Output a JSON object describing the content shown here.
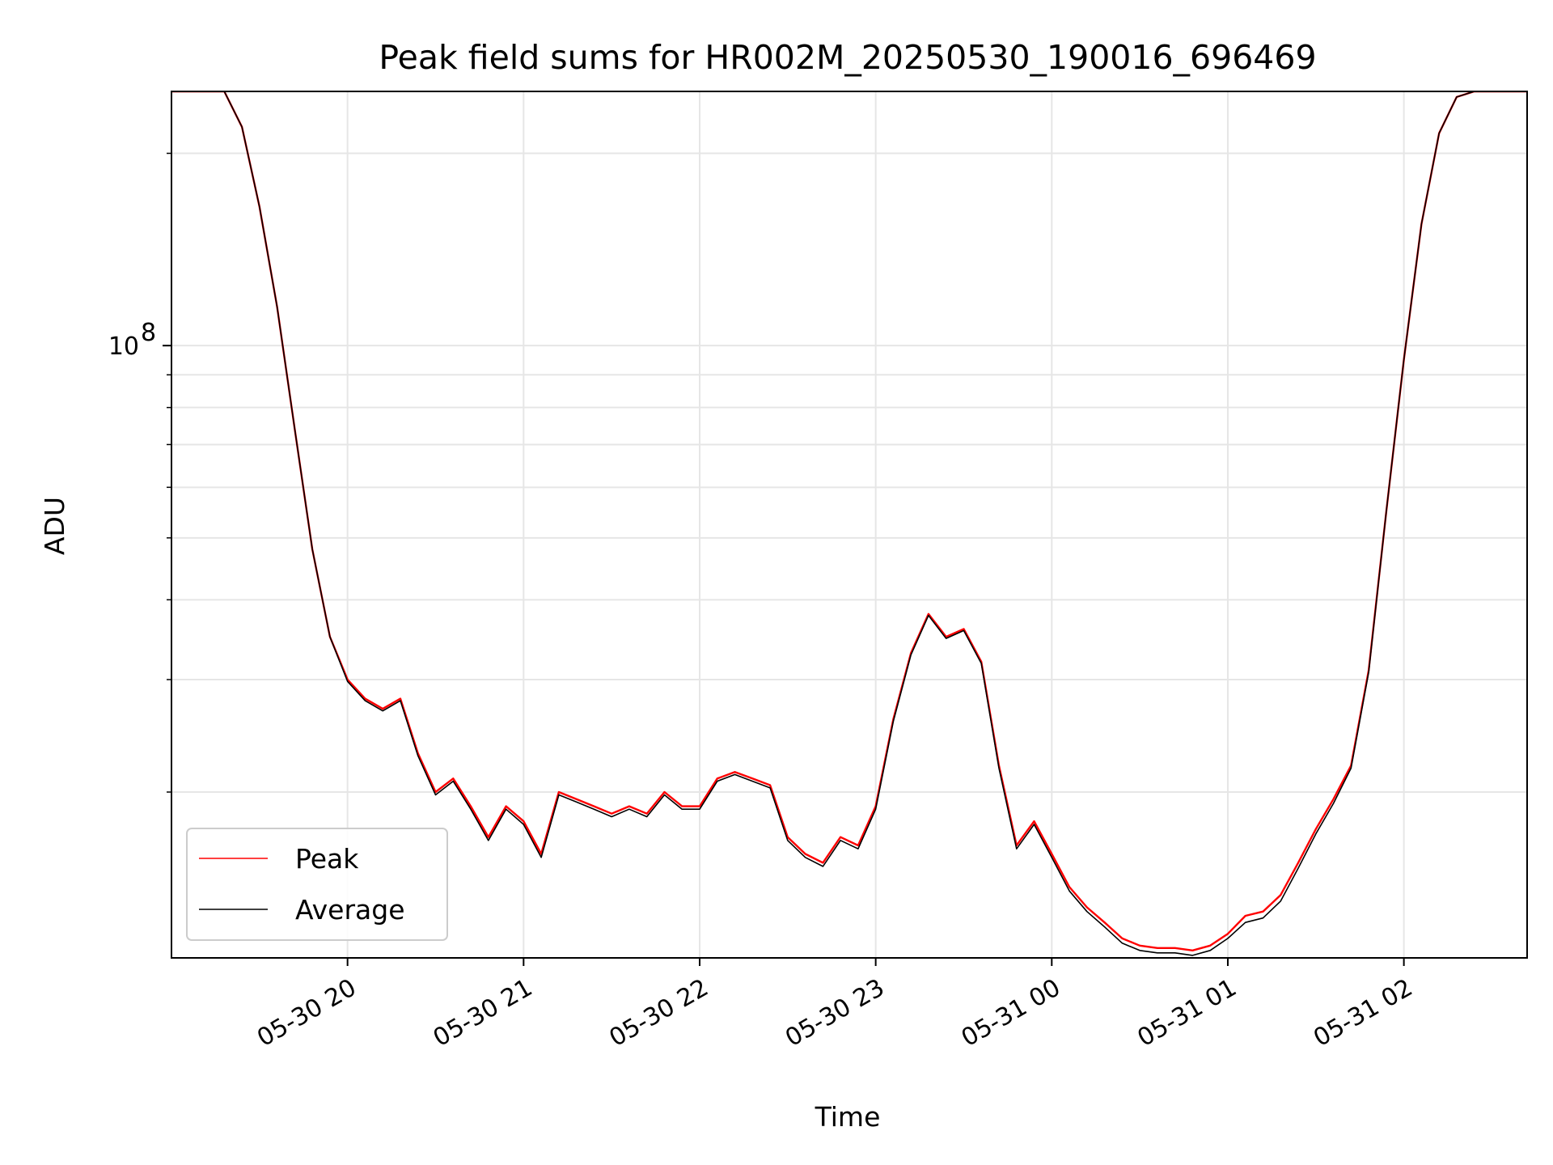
{
  "chart_data": {
    "type": "line",
    "title": "Peak field sums for HR002M_20250530_190016_696469",
    "xlabel": "Time",
    "ylabel": "ADU",
    "yscale": "log",
    "ylim": [
      11000000,
      250000000
    ],
    "xlim": [
      "2025-05-30 19:00",
      "2025-05-31 02:42"
    ],
    "grid": true,
    "legend_position": "lower-left",
    "x_ticks": [
      {
        "value": "2025-05-30 20:00",
        "label": "05-30 20"
      },
      {
        "value": "2025-05-30 21:00",
        "label": "05-30 21"
      },
      {
        "value": "2025-05-30 22:00",
        "label": "05-30 22"
      },
      {
        "value": "2025-05-30 23:00",
        "label": "05-30 23"
      },
      {
        "value": "2025-05-31 00:00",
        "label": "05-31 00"
      },
      {
        "value": "2025-05-31 01:00",
        "label": "05-31 01"
      },
      {
        "value": "2025-05-31 02:00",
        "label": "05-31 02"
      }
    ],
    "y_major_ticks": [
      {
        "value": 100000000,
        "mantissa": "10",
        "exponent": "8"
      }
    ],
    "y_minor_ticks": [
      20000000,
      30000000,
      40000000,
      50000000,
      60000000,
      70000000,
      80000000,
      90000000,
      200000000
    ],
    "x": [
      "2025-05-30 19:00",
      "2025-05-30 19:06",
      "2025-05-30 19:12",
      "2025-05-30 19:18",
      "2025-05-30 19:24",
      "2025-05-30 19:30",
      "2025-05-30 19:36",
      "2025-05-30 19:42",
      "2025-05-30 19:48",
      "2025-05-30 19:54",
      "2025-05-30 20:00",
      "2025-05-30 20:06",
      "2025-05-30 20:12",
      "2025-05-30 20:18",
      "2025-05-30 20:24",
      "2025-05-30 20:30",
      "2025-05-30 20:36",
      "2025-05-30 20:42",
      "2025-05-30 20:48",
      "2025-05-30 20:54",
      "2025-05-30 21:00",
      "2025-05-30 21:06",
      "2025-05-30 21:12",
      "2025-05-30 21:18",
      "2025-05-30 21:24",
      "2025-05-30 21:30",
      "2025-05-30 21:36",
      "2025-05-30 21:42",
      "2025-05-30 21:48",
      "2025-05-30 21:54",
      "2025-05-30 22:00",
      "2025-05-30 22:06",
      "2025-05-30 22:12",
      "2025-05-30 22:18",
      "2025-05-30 22:24",
      "2025-05-30 22:30",
      "2025-05-30 22:36",
      "2025-05-30 22:42",
      "2025-05-30 22:48",
      "2025-05-30 22:54",
      "2025-05-30 23:00",
      "2025-05-30 23:06",
      "2025-05-30 23:12",
      "2025-05-30 23:18",
      "2025-05-30 23:24",
      "2025-05-30 23:30",
      "2025-05-30 23:36",
      "2025-05-30 23:42",
      "2025-05-30 23:48",
      "2025-05-30 23:54",
      "2025-05-31 00:00",
      "2025-05-31 00:06",
      "2025-05-31 00:12",
      "2025-05-31 00:18",
      "2025-05-31 00:24",
      "2025-05-31 00:30",
      "2025-05-31 00:36",
      "2025-05-31 00:42",
      "2025-05-31 00:48",
      "2025-05-31 00:54",
      "2025-05-31 01:00",
      "2025-05-31 01:06",
      "2025-05-31 01:12",
      "2025-05-31 01:18",
      "2025-05-31 01:24",
      "2025-05-31 01:30",
      "2025-05-31 01:36",
      "2025-05-31 01:42",
      "2025-05-31 01:48",
      "2025-05-31 01:54",
      "2025-05-31 02:00",
      "2025-05-31 02:06",
      "2025-05-31 02:12",
      "2025-05-31 02:18",
      "2025-05-31 02:24",
      "2025-05-31 02:30",
      "2025-05-31 02:36",
      "2025-05-31 02:42"
    ],
    "series": [
      {
        "name": "Peak",
        "color": "#ff0000",
        "values": [
          250000000,
          250000000,
          250000000,
          250000000,
          220000000,
          165000000,
          115000000,
          74000000,
          48000000,
          35000000,
          30000000,
          28000000,
          27000000,
          28000000,
          23000000,
          20000000,
          21000000,
          19000000,
          17000000,
          19000000,
          18000000,
          16000000,
          20000000,
          19500000,
          19000000,
          18500000,
          19000000,
          18500000,
          20000000,
          19000000,
          19000000,
          21000000,
          21500000,
          21000000,
          20500000,
          17000000,
          16000000,
          15500000,
          17000000,
          16500000,
          19000000,
          26000000,
          33000000,
          38000000,
          35000000,
          36000000,
          32000000,
          22000000,
          16500000,
          18000000,
          16000000,
          14200000,
          13200000,
          12500000,
          11800000,
          11500000,
          11400000,
          11400000,
          11300000,
          11500000,
          12000000,
          12800000,
          13000000,
          13800000,
          15500000,
          17500000,
          19500000,
          22000000,
          31000000,
          55000000,
          95000000,
          155000000,
          215000000,
          245000000,
          250000000,
          250000000,
          250000000,
          250000000
        ]
      },
      {
        "name": "Average",
        "color": "#000000",
        "values": [
          250000000,
          250000000,
          250000000,
          250000000,
          220000000,
          165000000,
          115000000,
          74000000,
          48000000,
          35000000,
          29800000,
          27800000,
          26800000,
          27800000,
          22800000,
          19800000,
          20800000,
          18800000,
          16800000,
          18800000,
          17800000,
          15800000,
          19800000,
          19300000,
          18800000,
          18300000,
          18800000,
          18300000,
          19800000,
          18800000,
          18800000,
          20800000,
          21300000,
          20800000,
          20300000,
          16800000,
          15800000,
          15300000,
          16800000,
          16300000,
          18800000,
          25800000,
          32800000,
          37800000,
          34800000,
          35800000,
          31800000,
          21800000,
          16300000,
          17800000,
          15800000,
          14000000,
          13000000,
          12300000,
          11600000,
          11300000,
          11200000,
          11200000,
          11100000,
          11300000,
          11800000,
          12500000,
          12700000,
          13500000,
          15200000,
          17200000,
          19200000,
          21800000,
          30800000,
          55000000,
          95000000,
          155000000,
          215000000,
          245000000,
          250000000,
          250000000,
          250000000,
          250000000
        ]
      }
    ]
  }
}
